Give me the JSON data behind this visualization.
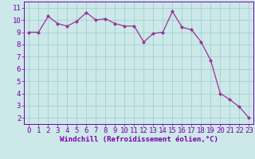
{
  "x": [
    0,
    1,
    2,
    3,
    4,
    5,
    6,
    7,
    8,
    9,
    10,
    11,
    12,
    13,
    14,
    15,
    16,
    17,
    18,
    19,
    20,
    21,
    22,
    23
  ],
  "y": [
    9.0,
    9.0,
    10.3,
    9.7,
    9.5,
    9.9,
    10.6,
    10.0,
    10.1,
    9.7,
    9.5,
    9.5,
    8.2,
    8.9,
    9.0,
    10.7,
    9.4,
    9.2,
    8.2,
    6.7,
    4.0,
    3.5,
    2.9,
    2.0
  ],
  "line_color": "#993399",
  "marker": "D",
  "marker_size": 2.0,
  "bg_color": "#cce8e8",
  "grid_color": "#99cccc",
  "xlabel": "Windchill (Refroidissement éolien,°C)",
  "xlim": [
    -0.5,
    23.5
  ],
  "ylim": [
    1.5,
    11.5
  ],
  "yticks": [
    2,
    3,
    4,
    5,
    6,
    7,
    8,
    9,
    10,
    11
  ],
  "xticks": [
    0,
    1,
    2,
    3,
    4,
    5,
    6,
    7,
    8,
    9,
    10,
    11,
    12,
    13,
    14,
    15,
    16,
    17,
    18,
    19,
    20,
    21,
    22,
    23
  ],
  "tick_color": "#7700aa",
  "label_color": "#7700aa",
  "spine_color": "#7700aa",
  "tick_fontsize": 6.5,
  "xlabel_fontsize": 6.5
}
